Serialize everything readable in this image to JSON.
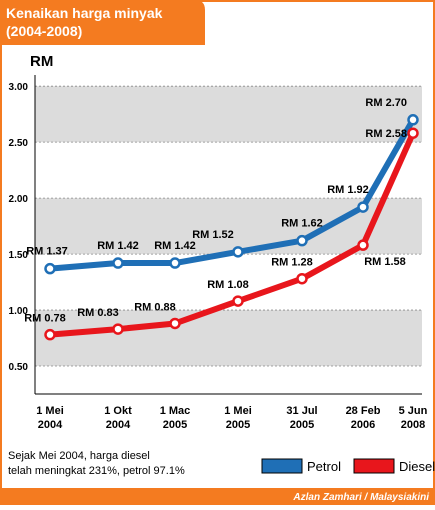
{
  "chart_data": {
    "type": "line",
    "title": "Kenaikan harga minyak",
    "subtitle": "(2004-2008)",
    "y_label": "RM",
    "categories": [
      "1 Mei 2004",
      "1 Okt 2004",
      "1 Mac 2005",
      "1 Mei 2005",
      "31 Jul 2005",
      "28 Feb 2006",
      "5 Jun 2008"
    ],
    "series": [
      {
        "name": "Petrol",
        "color": "#1f6fb6",
        "values": [
          1.37,
          1.42,
          1.42,
          1.52,
          1.62,
          1.92,
          2.7
        ],
        "value_labels": [
          "RM 1.37",
          "RM 1.42",
          "RM 1.42",
          "RM 1.52",
          "RM 1.62",
          "RM 1.92",
          "RM 2.70"
        ]
      },
      {
        "name": "Diesel",
        "color": "#e8161c",
        "values": [
          0.78,
          0.83,
          0.88,
          1.08,
          1.28,
          1.58,
          2.58
        ],
        "value_labels": [
          "RM 0.78",
          "RM 0.83",
          "RM 0.88",
          "RM 1.08",
          "RM 1.28",
          "RM 1.58",
          "RM 2.58"
        ]
      }
    ],
    "ylim": [
      0.25,
      3.1
    ],
    "yticks": [
      {
        "value": 0.5,
        "label": "0.50"
      },
      {
        "value": 1,
        "label": "1.00"
      },
      {
        "value": 1.5,
        "label": "1.50"
      },
      {
        "value": 2,
        "label": "2.00"
      },
      {
        "value": 2.5,
        "label": "2.50"
      },
      {
        "value": 3,
        "label": "3.00"
      }
    ],
    "grid": true,
    "note": [
      "Sejak Mei 2004, harga diesel",
      "telah meningkat 231%, petrol 97.1%"
    ],
    "credit": "Azlan Zamhari / Malaysiakini"
  }
}
